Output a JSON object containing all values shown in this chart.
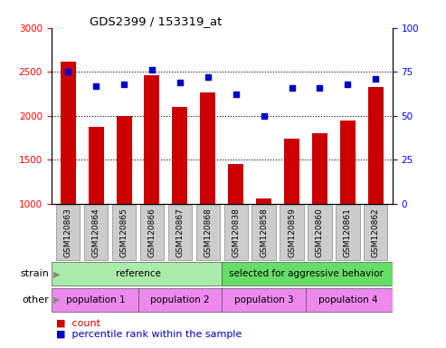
{
  "title": "GDS2399 / 153319_at",
  "samples": [
    "GSM120863",
    "GSM120864",
    "GSM120865",
    "GSM120866",
    "GSM120867",
    "GSM120868",
    "GSM120838",
    "GSM120858",
    "GSM120859",
    "GSM120860",
    "GSM120861",
    "GSM120862"
  ],
  "counts": [
    2620,
    1870,
    2000,
    2460,
    2100,
    2260,
    1450,
    1060,
    1740,
    1800,
    1940,
    2330
  ],
  "percentiles": [
    75,
    67,
    68,
    76,
    69,
    72,
    62,
    50,
    66,
    66,
    68,
    71
  ],
  "ylim_left": [
    1000,
    3000
  ],
  "ylim_right": [
    0,
    100
  ],
  "yticks_left": [
    1000,
    1500,
    2000,
    2500,
    3000
  ],
  "yticks_right": [
    0,
    25,
    50,
    75,
    100
  ],
  "bar_color": "#cc0000",
  "dot_color": "#0000cc",
  "strain_groups": [
    {
      "label": "reference",
      "start": 0,
      "end": 6,
      "color": "#aaeaaa"
    },
    {
      "label": "selected for aggressive behavior",
      "start": 6,
      "end": 12,
      "color": "#66dd66"
    }
  ],
  "other_groups": [
    {
      "label": "population 1",
      "start": 0,
      "end": 3,
      "color": "#ee88ee"
    },
    {
      "label": "population 2",
      "start": 3,
      "end": 6,
      "color": "#ee88ee"
    },
    {
      "label": "population 3",
      "start": 6,
      "end": 9,
      "color": "#ee88ee"
    },
    {
      "label": "population 4",
      "start": 9,
      "end": 12,
      "color": "#ee88ee"
    }
  ],
  "strain_label": "strain",
  "other_label": "other",
  "legend_count": "count",
  "legend_pct": "percentile rank within the sample",
  "xlabel_rotation": 90,
  "tick_box_color": "#cccccc",
  "dotted_lines": [
    1500,
    2000,
    2500
  ]
}
